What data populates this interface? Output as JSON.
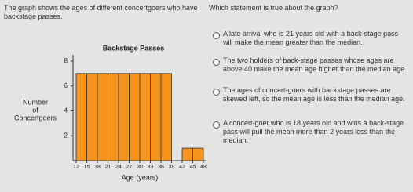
{
  "intro": "The graph shows the ages of different concertgoers who have backstage passes.",
  "question": "Which statement is true about the graph?",
  "options": [
    "A late arrival who is 21 years old with a back-stage pass will make the mean greater than the median.",
    "The two holders of back-stage passes whose ages are above 40 make the mean age higher than the median age.",
    "The ages of concert-goers with backstage passes are skewed left, so the mean age is less than the median age.",
    "A concert-goer who is 18 years old and wins a back-stage pass will pull the mean more than 2 years less than the median."
  ],
  "chart_data": {
    "type": "histogram",
    "title": "Backstage Passes",
    "x_label": "Age (years)",
    "y_label": [
      "Number",
      "of",
      "Concertgoers"
    ],
    "bins": [
      12,
      15,
      18,
      21,
      24,
      27,
      30,
      33,
      36,
      39,
      42,
      45,
      48
    ],
    "values": [
      7,
      7,
      7,
      7,
      7,
      7,
      7,
      7,
      7,
      0,
      1,
      1
    ],
    "color": "#f7941d",
    "xlim": [
      12,
      48
    ],
    "xticks": [
      12,
      15,
      18,
      21,
      24,
      27,
      30,
      33,
      36,
      39,
      42,
      45,
      48
    ],
    "ylim": [
      0,
      8.5
    ],
    "yticks": [
      2,
      4,
      6,
      8
    ]
  }
}
